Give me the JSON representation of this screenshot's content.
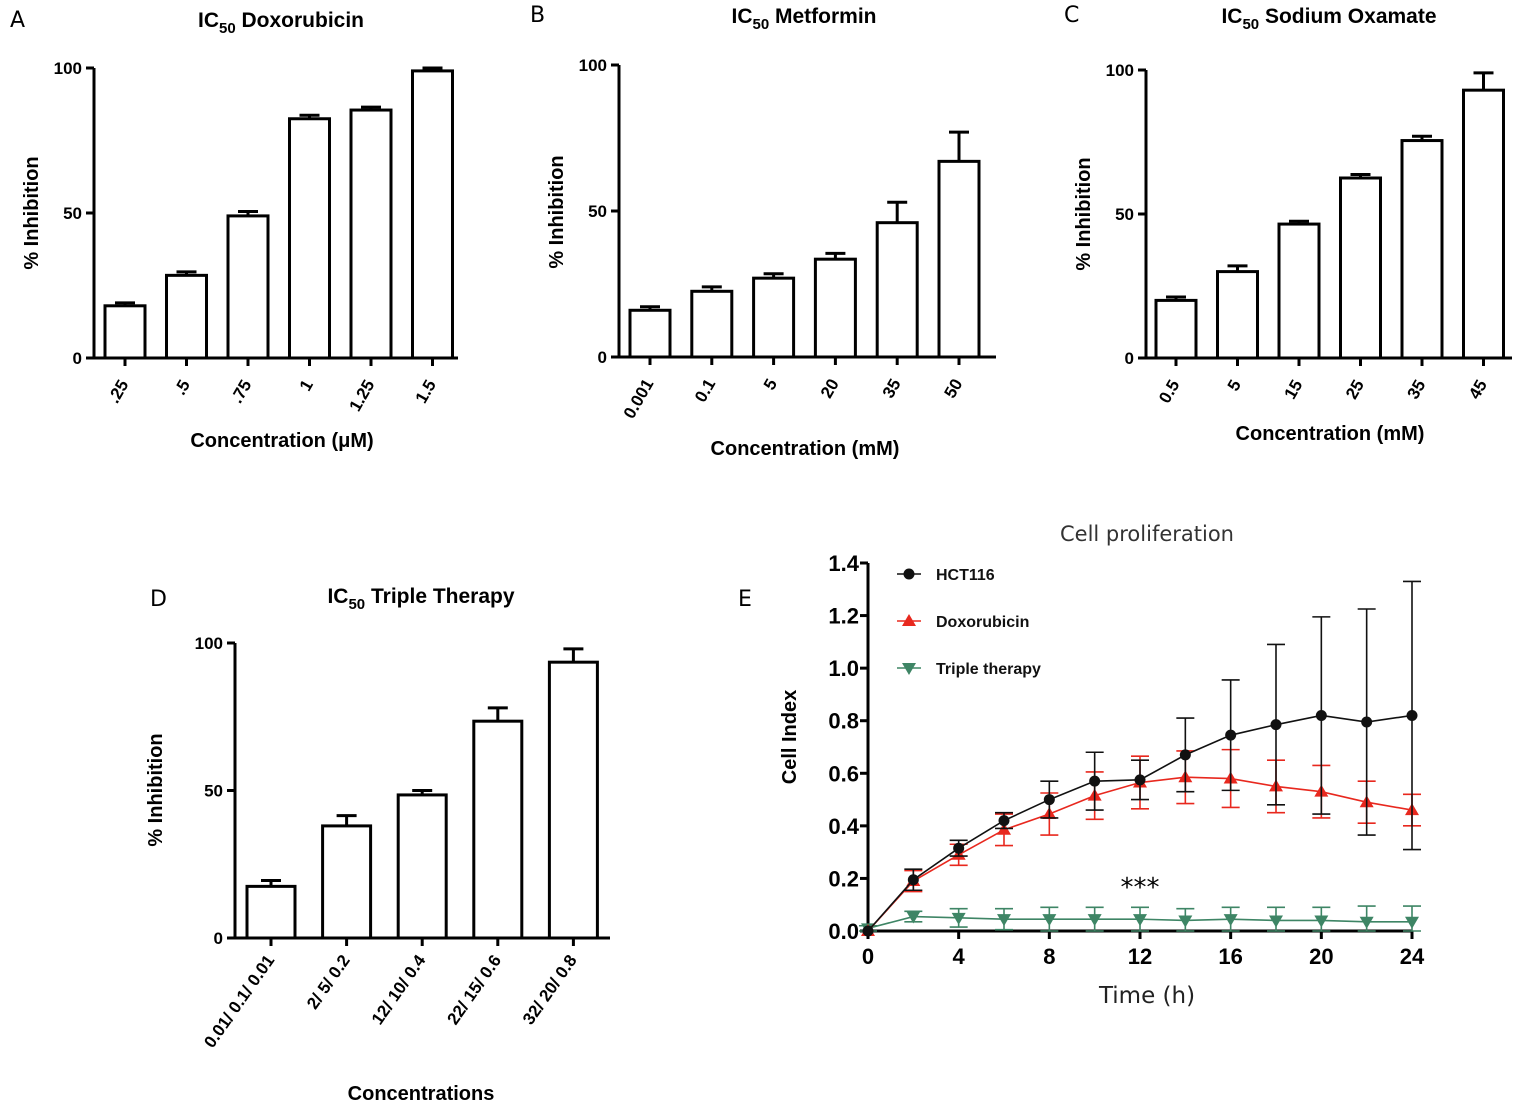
{
  "chart_data": [
    {
      "panel": "A",
      "type": "bar",
      "title_main": "IC",
      "title_sub": "50",
      "title_rest": " Doxorubicin",
      "xlabel": "Concentration (μM)",
      "ylabel": "% Inhibition",
      "ylim": [
        0,
        100
      ],
      "yticks": [
        "0",
        "50",
        "100"
      ],
      "categories": [
        ".25",
        ".5",
        ".75",
        "1",
        "1.25",
        "1.5"
      ],
      "values": [
        18,
        28.5,
        49,
        82.5,
        85.5,
        99
      ],
      "errors": [
        1,
        1.2,
        1.5,
        1.2,
        1,
        1
      ]
    },
    {
      "panel": "B",
      "type": "bar",
      "title_main": "IC",
      "title_sub": "50",
      "title_rest": " Metformin",
      "xlabel": "Concentration (mM)",
      "ylabel": "% Inhibition",
      "ylim": [
        0,
        100
      ],
      "yticks": [
        "0",
        "50",
        "100"
      ],
      "categories": [
        "0.001",
        "0.1",
        "5",
        "20",
        "35",
        "50"
      ],
      "values": [
        16,
        22.5,
        27,
        33.5,
        46,
        67
      ],
      "errors": [
        1.2,
        1.5,
        1.5,
        2,
        7,
        10
      ]
    },
    {
      "panel": "C",
      "type": "bar",
      "title_main": "IC",
      "title_sub": "50",
      "title_rest": " Sodium Oxamate",
      "xlabel": "Concentration (mM)",
      "ylabel": "% Inhibition",
      "ylim": [
        0,
        100
      ],
      "yticks": [
        "0",
        "50",
        "100"
      ],
      "categories": [
        "0.5",
        "5",
        "15",
        "25",
        "35",
        "45"
      ],
      "values": [
        20,
        30,
        46.5,
        62.5,
        75.5,
        93
      ],
      "errors": [
        1.2,
        2,
        1,
        1.2,
        1.5,
        6
      ]
    },
    {
      "panel": "D",
      "type": "bar",
      "title_main": "IC",
      "title_sub": "50",
      "title_rest": " Triple Therapy",
      "xlabel": "Concentrations",
      "ylabel": "% Inhibition",
      "ylim": [
        0,
        100
      ],
      "yticks": [
        "0",
        "50",
        "100"
      ],
      "categories": [
        "0.01/ 0.1/ 0.01",
        "2/ 5/ 0.2",
        "12/ 10/ 0.4",
        "22/ 15/ 0.6",
        "32/ 20/ 0.8"
      ],
      "values": [
        17.5,
        38,
        48.5,
        73.5,
        93.5
      ],
      "errors": [
        2,
        3.5,
        1.5,
        4.5,
        4.5
      ]
    },
    {
      "panel": "E",
      "type": "line",
      "title": "Cell proliferation",
      "xlabel": "Time (h)",
      "ylabel": "Cell Index",
      "xlim": [
        0,
        24
      ],
      "ylim": [
        0,
        1.4
      ],
      "xticks": [
        "0",
        "4",
        "8",
        "12",
        "16",
        "20",
        "24"
      ],
      "yticks": [
        "0.0",
        "0.2",
        "0.4",
        "0.6",
        "0.8",
        "1.0",
        "1.2",
        "1.4"
      ],
      "annotation": "***",
      "x": [
        0,
        2,
        4,
        6,
        8,
        10,
        12,
        14,
        16,
        18,
        20,
        22,
        24
      ],
      "series": [
        {
          "name": "HCT116",
          "color": "#111111",
          "marker": "circle",
          "values": [
            0,
            0.195,
            0.315,
            0.42,
            0.5,
            0.57,
            0.575,
            0.67,
            0.745,
            0.785,
            0.82,
            0.795,
            0.82
          ],
          "errors": [
            0,
            0.04,
            0.03,
            0.03,
            0.07,
            0.11,
            0.075,
            0.14,
            0.21,
            0.305,
            0.375,
            0.43,
            0.51
          ]
        },
        {
          "name": "Doxorubicin",
          "color": "#e8281e",
          "marker": "triangle-up",
          "values": [
            0,
            0.19,
            0.29,
            0.385,
            0.445,
            0.515,
            0.565,
            0.585,
            0.58,
            0.55,
            0.53,
            0.49,
            0.46
          ],
          "errors": [
            0,
            0.04,
            0.04,
            0.06,
            0.08,
            0.09,
            0.1,
            0.1,
            0.11,
            0.1,
            0.1,
            0.08,
            0.06
          ]
        },
        {
          "name": "Triple therapy",
          "color": "#3e8565",
          "marker": "triangle-down",
          "values": [
            0.01,
            0.055,
            0.05,
            0.045,
            0.045,
            0.045,
            0.045,
            0.04,
            0.045,
            0.04,
            0.04,
            0.035,
            0.035
          ],
          "errors": [
            0.01,
            0.02,
            0.035,
            0.04,
            0.045,
            0.045,
            0.045,
            0.045,
            0.045,
            0.05,
            0.05,
            0.06,
            0.06
          ]
        }
      ]
    }
  ]
}
